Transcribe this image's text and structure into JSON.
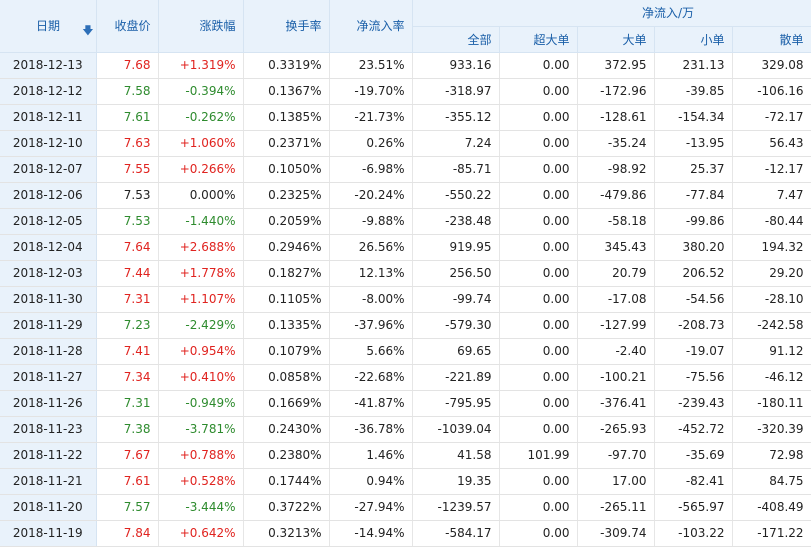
{
  "headers": {
    "date": "日期",
    "close": "收盘价",
    "change": "涨跌幅",
    "turnover": "换手率",
    "netratio": "净流入率",
    "netflow_group": "净流入/万",
    "all": "全部",
    "xlarge": "超大单",
    "large": "大单",
    "small": "小单",
    "retail": "散单"
  },
  "colors": {
    "up": "#e0231f",
    "down": "#2e8b2e",
    "header_bg": "#e9f2fb",
    "header_text": "#1a5fa8"
  },
  "rows": [
    {
      "date": "2018-12-13",
      "close": "7.68",
      "change": "+1.319%",
      "turnover": "0.3319%",
      "netratio": "23.51%",
      "all": "933.16",
      "xlarge": "0.00",
      "large": "372.95",
      "small": "231.13",
      "retail": "329.08",
      "dir": "up"
    },
    {
      "date": "2018-12-12",
      "close": "7.58",
      "change": "-0.394%",
      "turnover": "0.1367%",
      "netratio": "-19.70%",
      "all": "-318.97",
      "xlarge": "0.00",
      "large": "-172.96",
      "small": "-39.85",
      "retail": "-106.16",
      "dir": "down"
    },
    {
      "date": "2018-12-11",
      "close": "7.61",
      "change": "-0.262%",
      "turnover": "0.1385%",
      "netratio": "-21.73%",
      "all": "-355.12",
      "xlarge": "0.00",
      "large": "-128.61",
      "small": "-154.34",
      "retail": "-72.17",
      "dir": "down"
    },
    {
      "date": "2018-12-10",
      "close": "7.63",
      "change": "+1.060%",
      "turnover": "0.2371%",
      "netratio": "0.26%",
      "all": "7.24",
      "xlarge": "0.00",
      "large": "-35.24",
      "small": "-13.95",
      "retail": "56.43",
      "dir": "up"
    },
    {
      "date": "2018-12-07",
      "close": "7.55",
      "change": "+0.266%",
      "turnover": "0.1050%",
      "netratio": "-6.98%",
      "all": "-85.71",
      "xlarge": "0.00",
      "large": "-98.92",
      "small": "25.37",
      "retail": "-12.17",
      "dir": "up"
    },
    {
      "date": "2018-12-06",
      "close": "7.53",
      "change": "0.000%",
      "turnover": "0.2325%",
      "netratio": "-20.24%",
      "all": "-550.22",
      "xlarge": "0.00",
      "large": "-479.86",
      "small": "-77.84",
      "retail": "7.47",
      "dir": "flat"
    },
    {
      "date": "2018-12-05",
      "close": "7.53",
      "change": "-1.440%",
      "turnover": "0.2059%",
      "netratio": "-9.88%",
      "all": "-238.48",
      "xlarge": "0.00",
      "large": "-58.18",
      "small": "-99.86",
      "retail": "-80.44",
      "dir": "down"
    },
    {
      "date": "2018-12-04",
      "close": "7.64",
      "change": "+2.688%",
      "turnover": "0.2946%",
      "netratio": "26.56%",
      "all": "919.95",
      "xlarge": "0.00",
      "large": "345.43",
      "small": "380.20",
      "retail": "194.32",
      "dir": "up"
    },
    {
      "date": "2018-12-03",
      "close": "7.44",
      "change": "+1.778%",
      "turnover": "0.1827%",
      "netratio": "12.13%",
      "all": "256.50",
      "xlarge": "0.00",
      "large": "20.79",
      "small": "206.52",
      "retail": "29.20",
      "dir": "up"
    },
    {
      "date": "2018-11-30",
      "close": "7.31",
      "change": "+1.107%",
      "turnover": "0.1105%",
      "netratio": "-8.00%",
      "all": "-99.74",
      "xlarge": "0.00",
      "large": "-17.08",
      "small": "-54.56",
      "retail": "-28.10",
      "dir": "up"
    },
    {
      "date": "2018-11-29",
      "close": "7.23",
      "change": "-2.429%",
      "turnover": "0.1335%",
      "netratio": "-37.96%",
      "all": "-579.30",
      "xlarge": "0.00",
      "large": "-127.99",
      "small": "-208.73",
      "retail": "-242.58",
      "dir": "down"
    },
    {
      "date": "2018-11-28",
      "close": "7.41",
      "change": "+0.954%",
      "turnover": "0.1079%",
      "netratio": "5.66%",
      "all": "69.65",
      "xlarge": "0.00",
      "large": "-2.40",
      "small": "-19.07",
      "retail": "91.12",
      "dir": "up"
    },
    {
      "date": "2018-11-27",
      "close": "7.34",
      "change": "+0.410%",
      "turnover": "0.0858%",
      "netratio": "-22.68%",
      "all": "-221.89",
      "xlarge": "0.00",
      "large": "-100.21",
      "small": "-75.56",
      "retail": "-46.12",
      "dir": "up"
    },
    {
      "date": "2018-11-26",
      "close": "7.31",
      "change": "-0.949%",
      "turnover": "0.1669%",
      "netratio": "-41.87%",
      "all": "-795.95",
      "xlarge": "0.00",
      "large": "-376.41",
      "small": "-239.43",
      "retail": "-180.11",
      "dir": "down"
    },
    {
      "date": "2018-11-23",
      "close": "7.38",
      "change": "-3.781%",
      "turnover": "0.2430%",
      "netratio": "-36.78%",
      "all": "-1039.04",
      "xlarge": "0.00",
      "large": "-265.93",
      "small": "-452.72",
      "retail": "-320.39",
      "dir": "down"
    },
    {
      "date": "2018-11-22",
      "close": "7.67",
      "change": "+0.788%",
      "turnover": "0.2380%",
      "netratio": "1.46%",
      "all": "41.58",
      "xlarge": "101.99",
      "large": "-97.70",
      "small": "-35.69",
      "retail": "72.98",
      "dir": "up"
    },
    {
      "date": "2018-11-21",
      "close": "7.61",
      "change": "+0.528%",
      "turnover": "0.1744%",
      "netratio": "0.94%",
      "all": "19.35",
      "xlarge": "0.00",
      "large": "17.00",
      "small": "-82.41",
      "retail": "84.75",
      "dir": "up"
    },
    {
      "date": "2018-11-20",
      "close": "7.57",
      "change": "-3.444%",
      "turnover": "0.3722%",
      "netratio": "-27.94%",
      "all": "-1239.57",
      "xlarge": "0.00",
      "large": "-265.11",
      "small": "-565.97",
      "retail": "-408.49",
      "dir": "down"
    },
    {
      "date": "2018-11-19",
      "close": "7.84",
      "change": "+0.642%",
      "turnover": "0.3213%",
      "netratio": "-14.94%",
      "all": "-584.17",
      "xlarge": "0.00",
      "large": "-309.74",
      "small": "-103.22",
      "retail": "-171.22",
      "dir": "up"
    }
  ]
}
